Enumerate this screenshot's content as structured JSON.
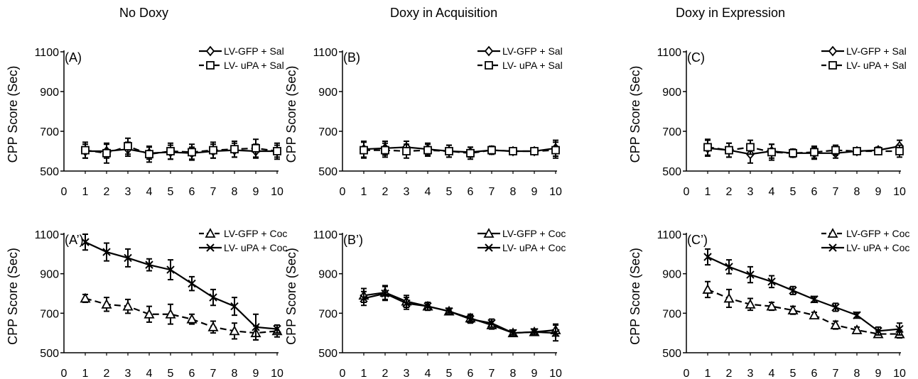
{
  "column_titles": [
    "No Doxy",
    "Doxy in Acquisition",
    "Doxy in Expression"
  ],
  "chart_data": [
    {
      "type": "line",
      "panel": "(A)",
      "column": 0,
      "row": 0,
      "xlabel": "",
      "ylabel": "CPP Score (Sec)",
      "x": [
        1,
        2,
        3,
        4,
        5,
        6,
        7,
        8,
        9,
        10
      ],
      "xlim": [
        0,
        10
      ],
      "ylim": [
        500,
        1100
      ],
      "x_ticks": [
        0,
        1,
        2,
        3,
        4,
        5,
        6,
        7,
        8,
        9,
        10
      ],
      "y_ticks": [
        500,
        700,
        900,
        1100
      ],
      "legend_position": "top-right",
      "series": [
        {
          "name": "LV-GFP + Sal",
          "marker": "diamond",
          "dash": false,
          "values": [
            600,
            600,
            610,
            590,
            595,
            590,
            600,
            605,
            600,
            600
          ],
          "errors": [
            35,
            35,
            35,
            30,
            35,
            30,
            35,
            35,
            35,
            30
          ]
        },
        {
          "name": "LV- uPA + Sal",
          "marker": "square",
          "dash": true,
          "values": [
            605,
            590,
            625,
            585,
            600,
            595,
            605,
            610,
            615,
            600
          ],
          "errors": [
            40,
            50,
            40,
            40,
            40,
            40,
            40,
            40,
            45,
            40
          ]
        }
      ]
    },
    {
      "type": "line",
      "panel": "(B)",
      "column": 1,
      "row": 0,
      "xlabel": "",
      "ylabel": "CPP Score (Sec)",
      "x": [
        1,
        2,
        3,
        4,
        5,
        6,
        7,
        8,
        9,
        10
      ],
      "xlim": [
        0,
        10
      ],
      "ylim": [
        500,
        1100
      ],
      "x_ticks": [
        0,
        1,
        2,
        3,
        4,
        5,
        6,
        7,
        8,
        9,
        10
      ],
      "y_ticks": [
        500,
        700,
        900,
        1100
      ],
      "legend_position": "top-right",
      "series": [
        {
          "name": "LV-GFP + Sal",
          "marker": "diamond",
          "dash": false,
          "values": [
            610,
            615,
            620,
            610,
            600,
            595,
            605,
            600,
            600,
            615
          ],
          "errors": [
            40,
            35,
            30,
            30,
            30,
            25,
            20,
            15,
            15,
            40
          ]
        },
        {
          "name": "LV- uPA + Sal",
          "marker": "square",
          "dash": true,
          "values": [
            605,
            605,
            600,
            605,
            600,
            590,
            605,
            600,
            600,
            605
          ],
          "errors": [
            40,
            35,
            35,
            30,
            30,
            30,
            20,
            15,
            15,
            40
          ]
        }
      ]
    },
    {
      "type": "line",
      "panel": "(C)",
      "column": 2,
      "row": 0,
      "xlabel": "",
      "ylabel": "CPP Score (Sec)",
      "x": [
        1,
        2,
        3,
        4,
        5,
        6,
        7,
        8,
        9,
        10
      ],
      "xlim": [
        0,
        10
      ],
      "ylim": [
        500,
        1100
      ],
      "x_ticks": [
        0,
        1,
        2,
        3,
        4,
        5,
        6,
        7,
        8,
        9,
        10
      ],
      "y_ticks": [
        500,
        700,
        900,
        1100
      ],
      "legend_position": "top-right",
      "series": [
        {
          "name": "LV-GFP + Sal",
          "marker": "diamond",
          "dash": false,
          "values": [
            615,
            605,
            585,
            600,
            590,
            590,
            590,
            600,
            605,
            625
          ],
          "errors": [
            40,
            35,
            45,
            35,
            20,
            30,
            25,
            15,
            15,
            30
          ]
        },
        {
          "name": "LV- uPA + Sal",
          "marker": "square",
          "dash": true,
          "values": [
            620,
            605,
            620,
            595,
            590,
            595,
            605,
            600,
            600,
            600
          ],
          "errors": [
            40,
            35,
            35,
            40,
            20,
            30,
            25,
            15,
            15,
            30
          ]
        }
      ]
    },
    {
      "type": "line",
      "panel": "(A’)",
      "column": 0,
      "row": 1,
      "xlabel": "",
      "ylabel": "CPP Score (Sec)",
      "x": [
        1,
        2,
        3,
        4,
        5,
        6,
        7,
        8,
        9,
        10
      ],
      "xlim": [
        0,
        10
      ],
      "ylim": [
        500,
        1100
      ],
      "x_ticks": [
        0,
        1,
        2,
        3,
        4,
        5,
        6,
        7,
        8,
        9,
        10
      ],
      "y_ticks": [
        500,
        700,
        900,
        1100
      ],
      "legend_position": "top-right",
      "series": [
        {
          "name": "LV-GFP + Coc",
          "marker": "triangle",
          "dash": true,
          "values": [
            775,
            745,
            735,
            695,
            695,
            670,
            630,
            610,
            600,
            610
          ],
          "errors": [
            20,
            35,
            35,
            40,
            50,
            25,
            30,
            40,
            35,
            30
          ]
        },
        {
          "name": "LV- uPA + Coc",
          "marker": "x",
          "dash": false,
          "values": [
            1060,
            1010,
            980,
            945,
            920,
            850,
            780,
            735,
            630,
            620
          ],
          "errors": [
            40,
            45,
            45,
            30,
            50,
            35,
            40,
            45,
            65,
            20
          ]
        }
      ]
    },
    {
      "type": "line",
      "panel": "(B’)",
      "column": 1,
      "row": 1,
      "xlabel": "",
      "ylabel": "CPP Score (Sec)",
      "x": [
        1,
        2,
        3,
        4,
        5,
        6,
        7,
        8,
        9,
        10
      ],
      "xlim": [
        0,
        10
      ],
      "ylim": [
        500,
        1100
      ],
      "x_ticks": [
        0,
        1,
        2,
        3,
        4,
        5,
        6,
        7,
        8,
        9,
        10
      ],
      "y_ticks": [
        500,
        700,
        900,
        1100
      ],
      "legend_position": "top-right",
      "series": [
        {
          "name": "LV-GFP + Coc",
          "marker": "triangle",
          "dash": false,
          "values": [
            790,
            805,
            760,
            735,
            710,
            675,
            640,
            600,
            605,
            615
          ],
          "errors": [
            35,
            35,
            30,
            20,
            15,
            20,
            20,
            15,
            15,
            30
          ]
        },
        {
          "name": "LV- uPA + Coc",
          "marker": "x",
          "dash": false,
          "values": [
            775,
            800,
            750,
            735,
            710,
            670,
            650,
            600,
            605,
            600
          ],
          "errors": [
            35,
            35,
            30,
            20,
            15,
            20,
            20,
            15,
            15,
            40
          ]
        }
      ]
    },
    {
      "type": "line",
      "panel": "(C’)",
      "column": 2,
      "row": 1,
      "xlabel": "",
      "ylabel": "CPP Score (Sec)",
      "x": [
        1,
        2,
        3,
        4,
        5,
        6,
        7,
        8,
        9,
        10
      ],
      "xlim": [
        0,
        10
      ],
      "ylim": [
        500,
        1100
      ],
      "x_ticks": [
        0,
        1,
        2,
        3,
        4,
        5,
        6,
        7,
        8,
        9,
        10
      ],
      "y_ticks": [
        500,
        700,
        900,
        1100
      ],
      "legend_position": "top-right",
      "series": [
        {
          "name": "LV-GFP + Coc",
          "marker": "triangle",
          "dash": true,
          "values": [
            820,
            775,
            745,
            735,
            715,
            690,
            640,
            615,
            595,
            595
          ],
          "errors": [
            40,
            45,
            30,
            20,
            20,
            15,
            20,
            15,
            15,
            20
          ]
        },
        {
          "name": "LV- uPA + Coc",
          "marker": "x",
          "dash": false,
          "values": [
            985,
            935,
            895,
            860,
            815,
            770,
            730,
            690,
            610,
            620
          ],
          "errors": [
            40,
            35,
            40,
            30,
            20,
            15,
            20,
            15,
            20,
            30
          ]
        }
      ]
    }
  ]
}
